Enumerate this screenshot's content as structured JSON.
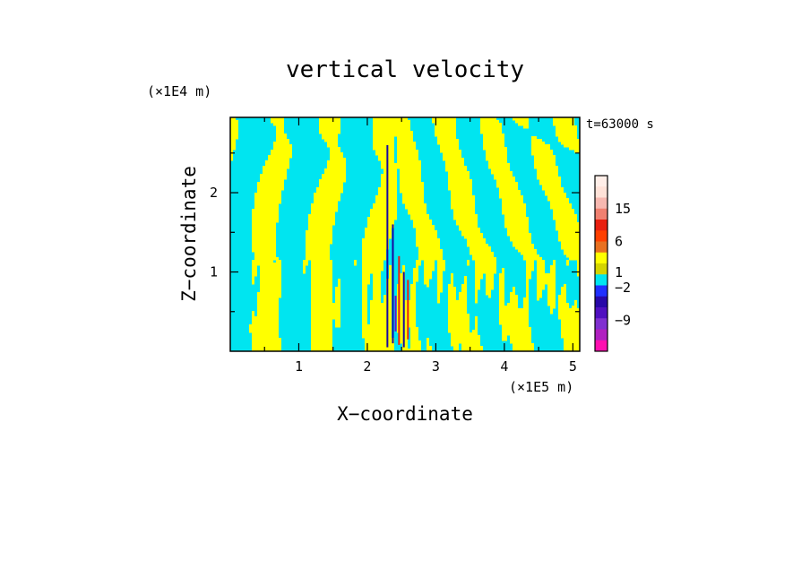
{
  "chart_data": {
    "type": "heatmap",
    "title": "vertical velocity",
    "xlabel": "X−coordinate",
    "ylabel": "Z−coordinate",
    "x_scale_label": "(×1E5 m)",
    "y_scale_label": "(×1E4 m)",
    "time_label": "t=63000 s",
    "x_range": [
      0,
      5.1
    ],
    "y_range": [
      0,
      2.95
    ],
    "x_ticks": [
      1,
      2,
      3,
      4,
      5
    ],
    "y_ticks": [
      1,
      2
    ],
    "colorbar": {
      "labels": [
        "15",
        "6",
        "1",
        "−2",
        "−9"
      ],
      "label_values": [
        15,
        6,
        1,
        -2,
        -9
      ],
      "colors_top_to_bottom": [
        "#ffeee8",
        "#ffe2d8",
        "#f7b8b0",
        "#f08070",
        "#e82010",
        "#ff4000",
        "#e87020",
        "#ffff00",
        "#d4d400",
        "#00e5f0",
        "#2030ff",
        "#2808a8",
        "#5010c0",
        "#8030d0",
        "#b020c0",
        "#ff10b0"
      ]
    },
    "field_colors": {
      "updraft_weak": "#ffff00",
      "downdraft_weak": "#00e5f0",
      "updraft_strong": "#e82010",
      "downdraft_strong": "#1808a0"
    }
  }
}
